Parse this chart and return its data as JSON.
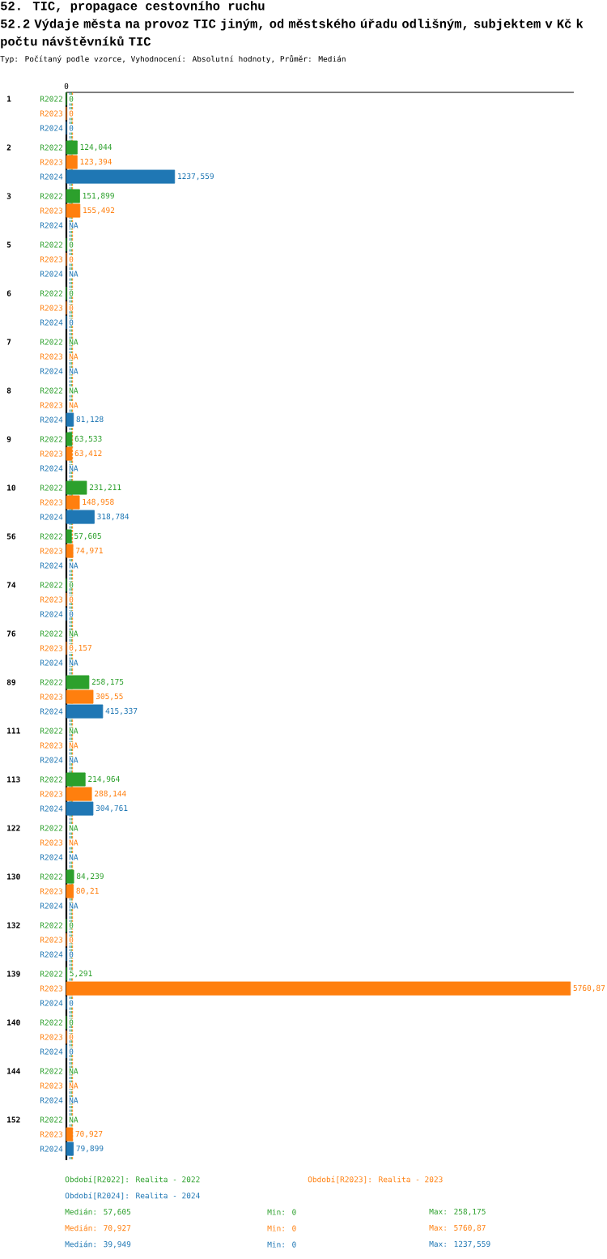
{
  "chart_data": {
    "type": "bar",
    "orientation": "horizontal",
    "title": "52. TIC, propagace cestovního ruchu",
    "subtitle": "52.2 Výdaje města na provoz TIC jiným, od městského úřadu odlišným, subjektem v Kč k počtu návštěvníků TIC",
    "categories": [
      "1",
      "2",
      "3",
      "5",
      "6",
      "7",
      "8",
      "9",
      "10",
      "56",
      "74",
      "76",
      "89",
      "111",
      "113",
      "122",
      "130",
      "132",
      "139",
      "140",
      "144",
      "152"
    ],
    "series": [
      {
        "name": "R2022",
        "color": "#2ca02c",
        "values": [
          0,
          124.044,
          151.899,
          0,
          0,
          null,
          null,
          63.533,
          231.211,
          57.605,
          0,
          null,
          258.175,
          null,
          214.964,
          null,
          84.239,
          0,
          5.291,
          0,
          null,
          null
        ],
        "value_labels": [
          "0",
          "124,044",
          "151,899",
          "0",
          "0",
          "NA",
          "NA",
          "63,533",
          "231,211",
          "57,605",
          "0",
          "NA",
          "258,175",
          "NA",
          "214,964",
          "NA",
          "84,239",
          "0",
          "5,291",
          "0",
          "NA",
          "NA"
        ]
      },
      {
        "name": "R2023",
        "color": "#ff7f0e",
        "values": [
          0,
          123.394,
          155.492,
          0,
          0,
          null,
          null,
          63.412,
          148.958,
          74.971,
          0,
          0.157,
          305.55,
          null,
          288.144,
          null,
          80.21,
          0,
          5760.87,
          0,
          null,
          70.927
        ],
        "value_labels": [
          "0",
          "123,394",
          "155,492",
          "0",
          "0",
          "NA",
          "NA",
          "63,412",
          "148,958",
          "74,971",
          "0",
          "0,157",
          "305,55",
          "NA",
          "288,144",
          "NA",
          "80,21",
          "0",
          "5760,87",
          "0",
          "NA",
          "70,927"
        ]
      },
      {
        "name": "R2024",
        "color": "#1f77b4",
        "values": [
          0,
          1237.559,
          null,
          null,
          0,
          null,
          81.128,
          null,
          318.784,
          null,
          0,
          null,
          415.337,
          null,
          304.761,
          null,
          null,
          0,
          0,
          0,
          null,
          79.899
        ],
        "value_labels": [
          "0",
          "1237,559",
          "NA",
          "NA",
          "0",
          "NA",
          "81,128",
          "NA",
          "318,784",
          "NA",
          "0",
          "NA",
          "415,337",
          "NA",
          "304,761",
          "NA",
          "NA",
          "0",
          "0",
          "0",
          "NA",
          "79,899"
        ]
      }
    ],
    "xlim": [
      0,
      5800
    ],
    "ref_lines": [
      {
        "axis": "x",
        "value": 57.605,
        "color": "#2ca02c",
        "line_style": "dashed"
      },
      {
        "axis": "x",
        "value": 70.927,
        "color": "#ff7f0e",
        "line_style": "dashed"
      },
      {
        "axis": "x",
        "value": 39.949,
        "color": "#1f77b4",
        "line_style": "dashed"
      }
    ],
    "annotations": [
      "Typ: Počítaný podle vzorce, Vyhodnocení: Absolutní hodnoty, Průměr: Medián",
      "Období[R2022]: Realita - 2022",
      "Medián: 57,605",
      "Min: 0",
      "Max: 258,175",
      "Období[R2023]: Realita - 2023",
      "Medián: 70,927",
      "Min: 0",
      "Max: 5760,87",
      "Období[R2024]: Realita - 2024",
      "Medián: 39,949",
      "Min: 0",
      "Max: 1237,559",
      "0"
    ]
  }
}
